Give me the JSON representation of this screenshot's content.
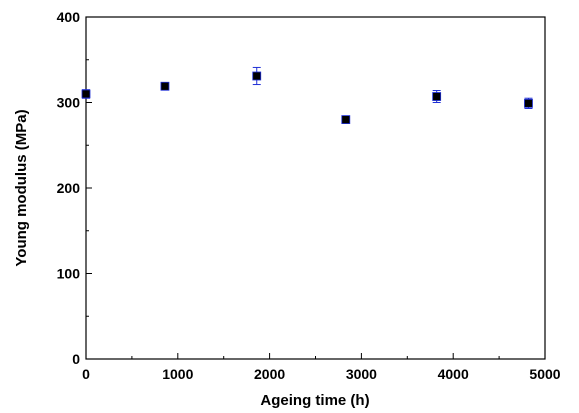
{
  "chart_data": {
    "type": "scatter",
    "xlabel": "Ageing time (h)",
    "ylabel": "Young modulus (MPa)",
    "xlim": [
      0,
      5000
    ],
    "ylim": [
      0,
      400
    ],
    "x_ticks": [
      0,
      1000,
      2000,
      3000,
      4000,
      5000
    ],
    "y_ticks": [
      0,
      100,
      200,
      300,
      400
    ],
    "x_tick_labels": [
      "0",
      "1000",
      "2000",
      "3000",
      "4000",
      "5000"
    ],
    "y_tick_labels": [
      "0",
      "100",
      "200",
      "300",
      "400"
    ],
    "grid": false,
    "marker_color": "#000000",
    "errorbar_color": "#1f2fd6",
    "points": [
      {
        "x": 0,
        "y": 310,
        "err": 5
      },
      {
        "x": 860,
        "y": 319,
        "err": 3
      },
      {
        "x": 1860,
        "y": 331,
        "err": 10
      },
      {
        "x": 2830,
        "y": 280,
        "err": 3
      },
      {
        "x": 3820,
        "y": 307,
        "err": 7
      },
      {
        "x": 4820,
        "y": 299,
        "err": 6
      }
    ]
  }
}
